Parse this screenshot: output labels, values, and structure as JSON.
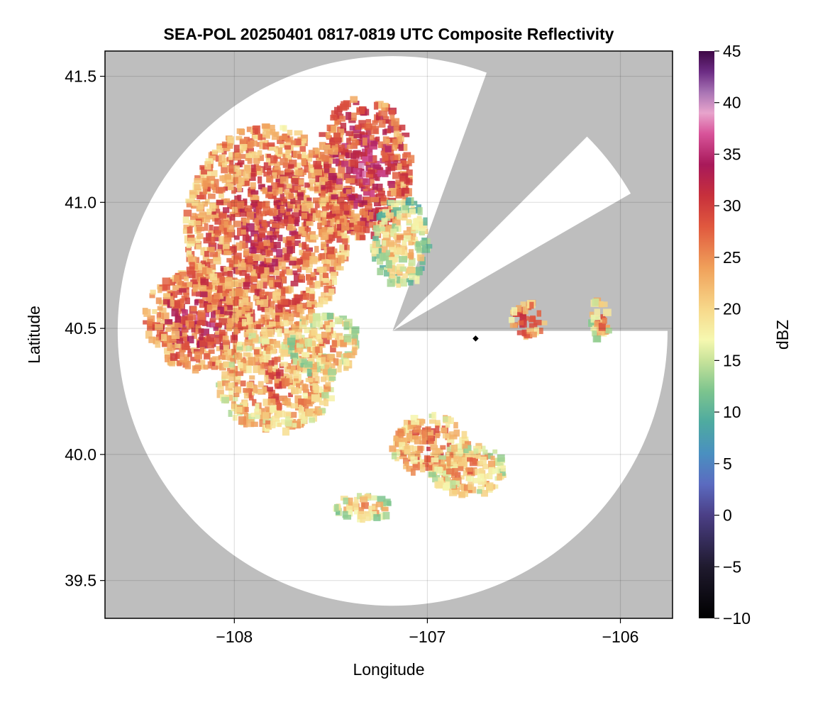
{
  "chart_data": {
    "type": "heatmap",
    "title": "SEA-POL 20250401 0817-0819 UTC Composite Reflectivity",
    "xlabel": "Longitude",
    "ylabel": "Latitude",
    "xlim": [
      -108.67,
      -105.73
    ],
    "ylim": [
      39.35,
      41.6
    ],
    "xticks": [
      -108,
      -107,
      -106
    ],
    "xtick_labels": [
      "−108",
      "−107",
      "−106"
    ],
    "yticks": [
      39.5,
      40.0,
      40.5,
      41.0,
      41.5
    ],
    "ytick_labels": [
      "39.5",
      "40.0",
      "40.5",
      "41.0",
      "41.5"
    ],
    "grid": true,
    "background_color": "#bebebe",
    "radar": {
      "center_lon": -107.18,
      "center_lat": 40.49,
      "radius_deg_lat": 1.09,
      "blocked_sectors_deg": [
        [
          20,
          45
        ],
        [
          60,
          90
        ]
      ],
      "site_lon": -106.75,
      "site_lat": 40.46
    },
    "colorbar": {
      "label": "dBZ",
      "min": -10,
      "max": 45,
      "ticks": [
        -10,
        -5,
        0,
        5,
        10,
        15,
        20,
        25,
        30,
        35,
        40,
        45
      ],
      "tick_labels": [
        "−10",
        "−5",
        "0",
        "5",
        "10",
        "15",
        "20",
        "25",
        "30",
        "35",
        "40",
        "45"
      ],
      "colormap_stops": [
        {
          "v": -10,
          "c": "#000000"
        },
        {
          "v": -5,
          "c": "#1f1a2e"
        },
        {
          "v": 0,
          "c": "#4b3f86"
        },
        {
          "v": 3,
          "c": "#5b6bc0"
        },
        {
          "v": 6,
          "c": "#4a90c0"
        },
        {
          "v": 9,
          "c": "#4eaaa0"
        },
        {
          "v": 12,
          "c": "#7cc48e"
        },
        {
          "v": 15,
          "c": "#c8e39a"
        },
        {
          "v": 17,
          "c": "#f6f8b0"
        },
        {
          "v": 20,
          "c": "#f7d88a"
        },
        {
          "v": 24,
          "c": "#f0a05a"
        },
        {
          "v": 28,
          "c": "#e0583e"
        },
        {
          "v": 31,
          "c": "#c7303c"
        },
        {
          "v": 34,
          "c": "#a8195a"
        },
        {
          "v": 37,
          "c": "#d8549a"
        },
        {
          "v": 39,
          "c": "#e8a4cc"
        },
        {
          "v": 41,
          "c": "#a874b4"
        },
        {
          "v": 43,
          "c": "#6c2c84"
        },
        {
          "v": 45,
          "c": "#3e0846"
        }
      ]
    },
    "echo_regions": [
      {
        "name": "northwest-main",
        "lon": -107.85,
        "lat": 40.9,
        "r_lon": 0.42,
        "r_lat": 0.42,
        "dbz": 23
      },
      {
        "name": "north-band",
        "lon": -107.35,
        "lat": 41.15,
        "r_lon": 0.25,
        "r_lat": 0.28,
        "dbz": 26
      },
      {
        "name": "ne-arm",
        "lon": -107.15,
        "lat": 40.85,
        "r_lon": 0.15,
        "r_lat": 0.18,
        "dbz": 14
      },
      {
        "name": "west-core",
        "lon": -108.2,
        "lat": 40.55,
        "r_lon": 0.28,
        "r_lat": 0.2,
        "dbz": 24
      },
      {
        "name": "southwest",
        "lon": -107.8,
        "lat": 40.3,
        "r_lon": 0.3,
        "r_lat": 0.2,
        "dbz": 19
      },
      {
        "name": "central",
        "lon": -107.55,
        "lat": 40.45,
        "r_lon": 0.18,
        "r_lat": 0.12,
        "dbz": 17
      },
      {
        "name": "south-cluster",
        "lon": -107.0,
        "lat": 40.05,
        "r_lon": 0.2,
        "r_lat": 0.12,
        "dbz": 20
      },
      {
        "name": "south-small",
        "lon": -106.8,
        "lat": 39.95,
        "r_lon": 0.2,
        "r_lat": 0.1,
        "dbz": 17
      },
      {
        "name": "east-cell",
        "lon": -106.5,
        "lat": 40.55,
        "r_lon": 0.08,
        "r_lat": 0.08,
        "dbz": 22
      },
      {
        "name": "far-east-cell",
        "lon": -106.12,
        "lat": 40.55,
        "r_lon": 0.05,
        "r_lat": 0.09,
        "dbz": 18
      },
      {
        "name": "south-fragments",
        "lon": -107.35,
        "lat": 39.8,
        "r_lon": 0.15,
        "r_lat": 0.05,
        "dbz": 16
      }
    ]
  }
}
